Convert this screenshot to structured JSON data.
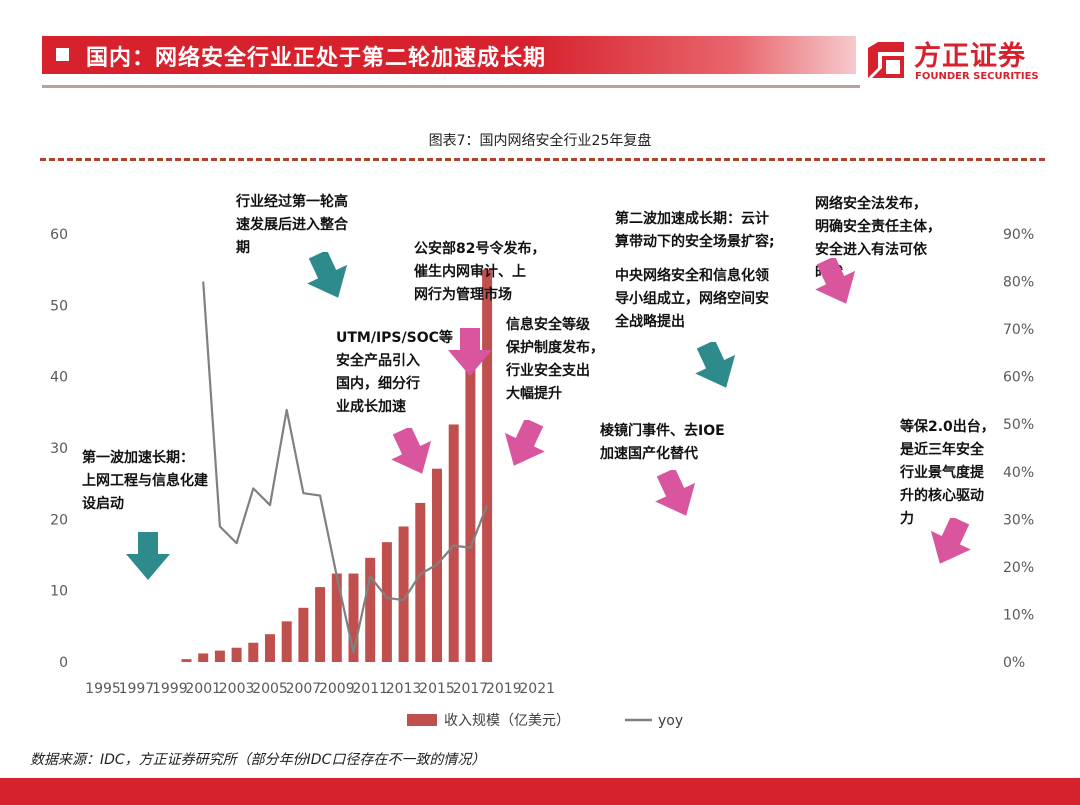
{
  "header": {
    "title": "国内：网络安全行业正处于第二轮加速成长期",
    "brand_cn": "方正证券",
    "brand_en": "FOUNDER SECURITIES"
  },
  "figure_title": "图表7：国内网络安全行业25年复盘",
  "source_note": "数据来源：IDC，方正证券研究所（部分年份IDC口径存在不一致的情况）",
  "annotations": [
    {
      "id": "wave1",
      "text": "第一波加速长期：\n上网工程与信息化建\n设启动"
    },
    {
      "id": "consolidate",
      "text": "行业经过第一轮高\n速发展后进入整合\n期"
    },
    {
      "id": "utm",
      "text": "UTM/IPS/SOC等\n安全产品引入\n国内，细分行\n业成长加速"
    },
    {
      "id": "mps82",
      "text": "公安部82号令发布，\n催生内网审计、上\n网行为管理市场"
    },
    {
      "id": "mlps",
      "text": "信息安全等级\n保护制度发布，\n行业安全支出\n大幅提升"
    },
    {
      "id": "prism",
      "text": "棱镜门事件、去IOE\n加速国产化替代"
    },
    {
      "id": "wave2",
      "text": "第二波加速成长期：云计\n算带动下的安全场景扩容;"
    },
    {
      "id": "central",
      "text": "中央网络安全和信息化领\n导小组成立，网络空间安\n全战略提出"
    },
    {
      "id": "law",
      "text": "网络安全法发布，\n明确安全责任主体，\n安全进入有法可依\n时代"
    },
    {
      "id": "mlps2",
      "text": "等保2.0出台，\n是近三年安全\n行业景气度提\n升的核心驱动\n力"
    }
  ],
  "arrow_colors": {
    "teal": "#2e8b8b",
    "pink": "#d9559e"
  },
  "chart_data": {
    "type": "bar",
    "x": [
      1995,
      1996,
      1997,
      1998,
      1999,
      2000,
      2001,
      2002,
      2003,
      2004,
      2005,
      2006,
      2007,
      2008,
      2009,
      2010,
      2011,
      2012,
      2013,
      2014,
      2015,
      2016,
      2017,
      2018,
      2019,
      2020,
      2021
    ],
    "x_ticks": [
      "1995",
      "1997",
      "1999",
      "2001",
      "2003",
      "2005",
      "2007",
      "2009",
      "2011",
      "2013",
      "2015",
      "2017",
      "2019",
      "2021"
    ],
    "series": [
      {
        "name": "收入规模（亿美元）",
        "type": "bar",
        "axis": "left",
        "color": "#c0504d",
        "values": [
          null,
          null,
          null,
          null,
          null,
          0.4,
          1.2,
          1.6,
          2.0,
          2.7,
          3.9,
          5.7,
          7.6,
          10.5,
          12.4,
          12.4,
          14.6,
          16.8,
          19.0,
          22.3,
          27.1,
          33.3,
          41.4,
          55.0,
          null,
          null,
          null
        ]
      },
      {
        "name": "yoy",
        "type": "line",
        "axis": "right",
        "color": "#808080",
        "values": [
          null,
          null,
          null,
          null,
          null,
          null,
          0.8,
          0.285,
          0.25,
          0.365,
          0.33,
          0.53,
          0.355,
          0.35,
          0.18,
          0.02,
          0.18,
          0.135,
          0.13,
          0.185,
          0.205,
          0.245,
          0.24,
          0.33,
          null,
          null,
          null
        ]
      }
    ],
    "y_left_ticks": [
      "0",
      "10",
      "20",
      "30",
      "40",
      "50",
      "60"
    ],
    "y_left_range": [
      0,
      60
    ],
    "y_right_ticks": [
      "0%",
      "10%",
      "20%",
      "30%",
      "40%",
      "50%",
      "60%",
      "70%",
      "80%",
      "90%"
    ],
    "y_right_range": [
      0,
      0.9
    ],
    "legend_position": "bottom",
    "grid": false
  }
}
